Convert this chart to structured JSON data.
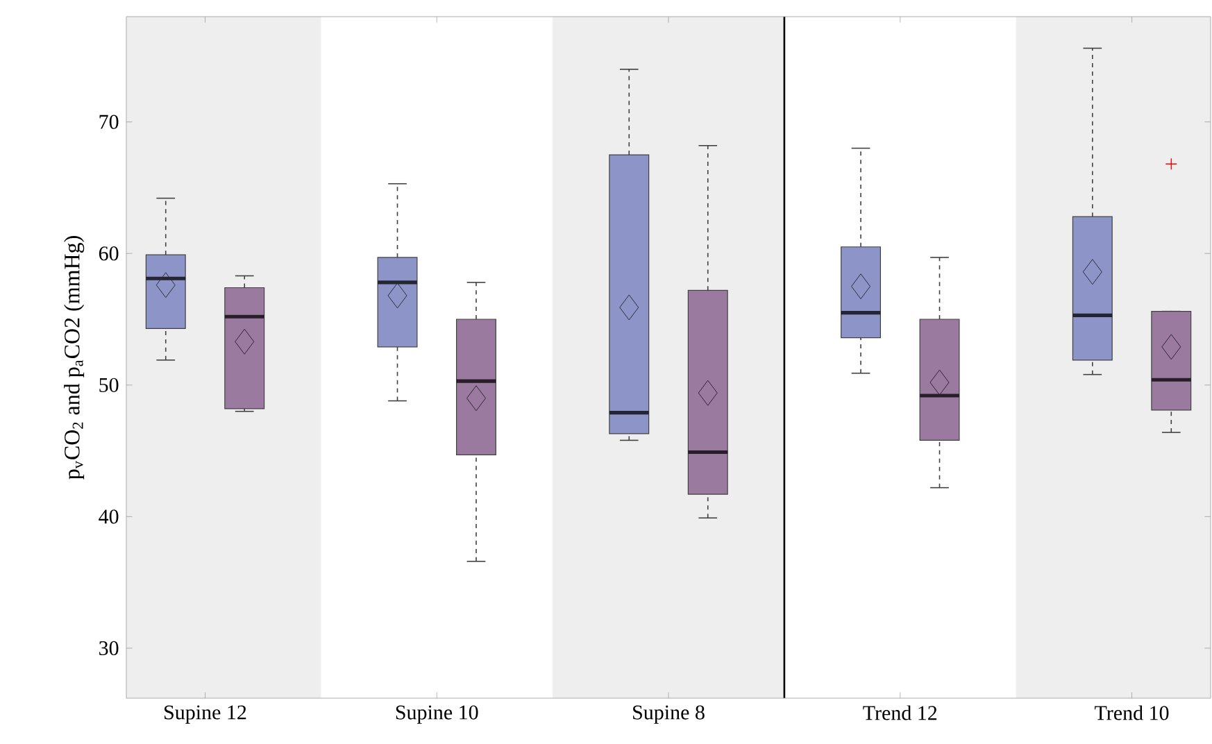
{
  "chart_data": {
    "type": "box",
    "categories": [
      "Supine 12",
      "Supine 10",
      "Supine 8",
      "Trend 12",
      "Trend 10"
    ],
    "ylabel": "p$_{v}$CO$_{2}$ and p$_{a}$CO2 (mmHg)",
    "ylim": [
      26.2,
      78
    ],
    "yticks": [
      30,
      40,
      50,
      60,
      70
    ],
    "series": [
      {
        "color": "#8c94c8",
        "boxes": [
          {
            "low": 51.9,
            "q1": 54.3,
            "median": 58.1,
            "q3": 59.9,
            "high": 64.2,
            "mean": 57.6
          },
          {
            "low": 48.8,
            "q1": 52.9,
            "median": 57.8,
            "q3": 59.7,
            "high": 65.3,
            "mean": 56.8
          },
          {
            "low": 45.8,
            "q1": 46.3,
            "median": 47.9,
            "q3": 67.5,
            "high": 74.0,
            "mean": 55.9
          },
          {
            "low": 50.9,
            "q1": 53.6,
            "median": 55.5,
            "q3": 60.5,
            "high": 68.0,
            "mean": 57.5
          },
          {
            "low": 50.8,
            "q1": 51.9,
            "median": 55.3,
            "q3": 62.8,
            "high": 75.6,
            "mean": 58.6
          }
        ]
      },
      {
        "color": "#9b7aa0",
        "boxes": [
          {
            "low": 48.0,
            "q1": 48.2,
            "median": 55.2,
            "q3": 57.4,
            "high": 58.3,
            "mean": 53.3
          },
          {
            "low": 36.6,
            "q1": 44.7,
            "median": 50.3,
            "q3": 55.0,
            "high": 57.8,
            "mean": 49.0
          },
          {
            "low": 39.9,
            "q1": 41.7,
            "median": 44.9,
            "q3": 57.2,
            "high": 68.2,
            "mean": 49.4
          },
          {
            "low": 42.2,
            "q1": 45.8,
            "median": 49.2,
            "q3": 55.0,
            "high": 59.7,
            "mean": 50.2
          },
          {
            "low": 46.4,
            "q1": 48.1,
            "median": 50.4,
            "q3": 55.6,
            "high": 55.6,
            "mean": 52.9,
            "outliers": [
              66.8
            ]
          }
        ]
      }
    ]
  }
}
